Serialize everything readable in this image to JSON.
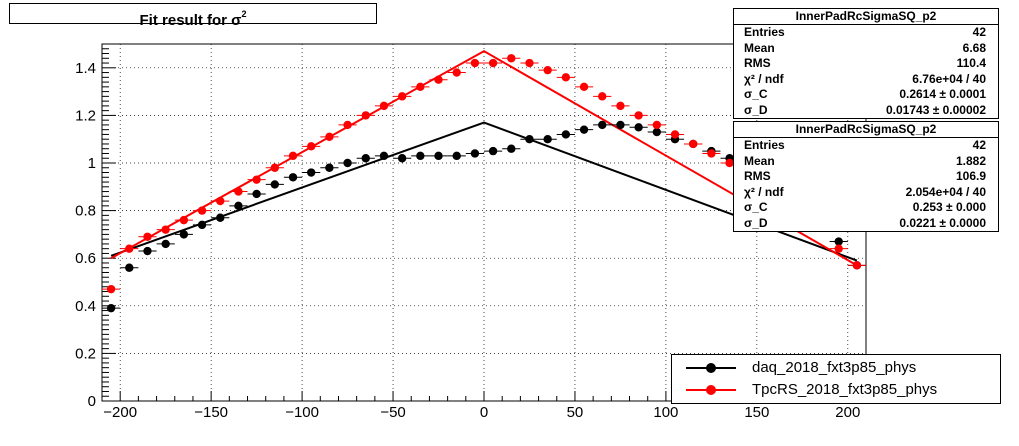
{
  "title": {
    "main": "Fit result for σ",
    "sup": "2"
  },
  "chart_data": {
    "type": "scatter",
    "xlim": [
      -210,
      210
    ],
    "ylim": [
      0,
      1.5
    ],
    "x_ticks": [
      -200,
      -150,
      -100,
      -50,
      0,
      50,
      100,
      150,
      200
    ],
    "x_tick_labels": [
      "−200",
      "−150",
      "−100",
      "−50",
      "0",
      "50",
      "100",
      "150",
      "200"
    ],
    "y_ticks": [
      0,
      0.2,
      0.4,
      0.6,
      0.8,
      1,
      1.2,
      1.4
    ],
    "y_tick_labels": [
      "0",
      "0.2",
      "0.4",
      "0.6",
      "0.8",
      "1",
      "1.2",
      "1.4"
    ],
    "grid": true,
    "legend_position": "bottom-right",
    "x": [
      -205,
      -195,
      -185,
      -175,
      -165,
      -155,
      -145,
      -135,
      -125,
      -115,
      -105,
      -95,
      -85,
      -75,
      -65,
      -55,
      -45,
      -35,
      -25,
      -15,
      -5,
      5,
      15,
      25,
      35,
      45,
      55,
      65,
      75,
      85,
      95,
      105,
      115,
      125,
      135,
      145,
      155,
      165,
      175,
      185,
      195,
      205
    ],
    "series": [
      {
        "name": "daq_2018_fxt3p85_phys",
        "color": "#000000",
        "values": [
          0.39,
          0.56,
          0.63,
          0.66,
          0.7,
          0.74,
          0.77,
          0.82,
          0.87,
          0.91,
          0.94,
          0.96,
          0.98,
          1.0,
          1.02,
          1.03,
          1.02,
          1.03,
          1.03,
          1.03,
          1.04,
          1.05,
          1.06,
          1.1,
          1.1,
          1.12,
          1.14,
          1.16,
          1.16,
          1.15,
          1.13,
          1.1,
          1.08,
          1.05,
          1.02,
          1.0,
          0.97,
          0.93,
          0.88,
          0.8,
          0.67,
          0.57
        ],
        "fit": {
          "x": [
            -205,
            0,
            205
          ],
          "y": [
            0.61,
            1.17,
            0.59
          ]
        }
      },
      {
        "name": "TpcRS_2018_fxt3p85_phys",
        "color": "#ff0000",
        "values": [
          0.47,
          0.64,
          0.69,
          0.72,
          0.76,
          0.8,
          0.84,
          0.88,
          0.93,
          0.98,
          1.03,
          1.07,
          1.11,
          1.16,
          1.2,
          1.24,
          1.28,
          1.32,
          1.35,
          1.38,
          1.42,
          1.42,
          1.44,
          1.42,
          1.39,
          1.36,
          1.32,
          1.28,
          1.24,
          1.2,
          1.16,
          1.12,
          1.08,
          1.04,
          1.0,
          0.96,
          0.92,
          0.86,
          0.8,
          0.73,
          0.64,
          0.57
        ],
        "fit": {
          "x": [
            -205,
            0,
            205
          ],
          "y": [
            0.6,
            1.47,
            0.57
          ]
        }
      }
    ]
  },
  "stats": [
    {
      "title": "InnerPadRcSigmaSQ_p2",
      "rows": [
        {
          "label": "Entries",
          "value": "42"
        },
        {
          "label": "Mean",
          "value": "6.68"
        },
        {
          "label": "RMS",
          "value": "110.4"
        },
        {
          "label": "χ² / ndf",
          "value": "6.76e+04 / 40"
        },
        {
          "label": "σ_C",
          "value": "0.2614 ± 0.0001"
        },
        {
          "label": "σ_D",
          "value": "0.01743 ± 0.00002"
        }
      ]
    },
    {
      "title": "InnerPadRcSigmaSQ_p2",
      "rows": [
        {
          "label": "Entries",
          "value": "42"
        },
        {
          "label": "Mean",
          "value": "1.882"
        },
        {
          "label": "RMS",
          "value": "106.9"
        },
        {
          "label": "χ² / ndf",
          "value": "2.054e+04 / 40"
        },
        {
          "label": "σ_C",
          "value": "0.253 ± 0.000"
        },
        {
          "label": "σ_D",
          "value": "0.0221 ± 0.0000"
        }
      ]
    }
  ],
  "legend": [
    {
      "label": "daq_2018_fxt3p85_phys",
      "color": "#000000"
    },
    {
      "label": "TpcRS_2018_fxt3p85_phys",
      "color": "#ff0000"
    }
  ]
}
